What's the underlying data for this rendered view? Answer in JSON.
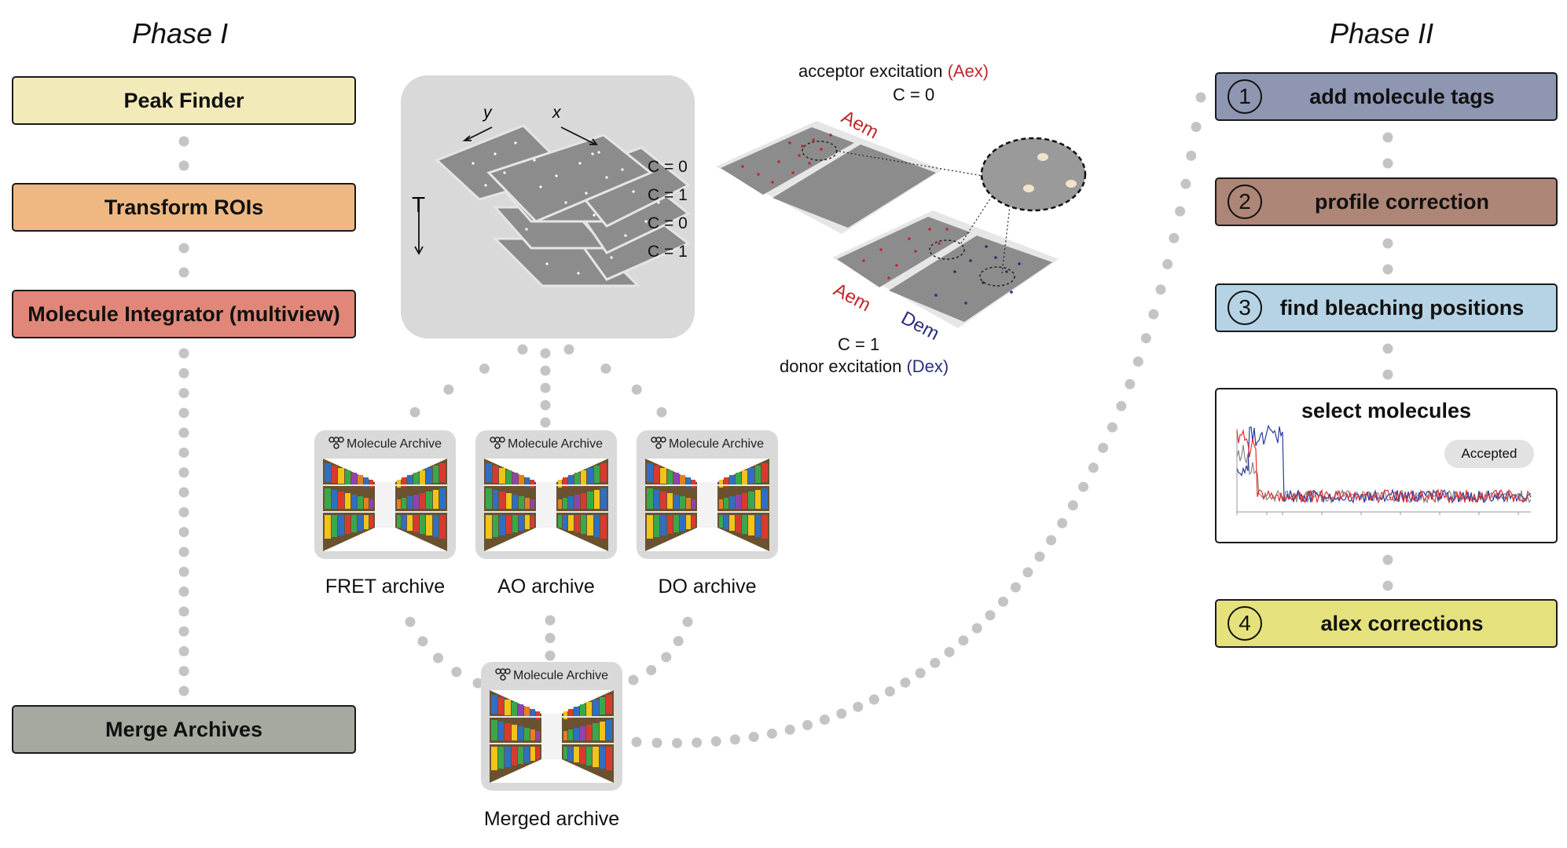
{
  "phase1": {
    "title": "Phase I",
    "steps": [
      {
        "label": "Peak Finder",
        "color": "#f2eab8"
      },
      {
        "label": "Transform ROIs",
        "color": "#efb882"
      },
      {
        "label": "Molecule Integrator (multiview)",
        "color": "#e0877a"
      },
      {
        "label": "Merge Archives",
        "color": "#a4aaa0"
      }
    ]
  },
  "phase2": {
    "title": "Phase II",
    "steps": [
      {
        "number": "1",
        "label": "add molecule tags",
        "color": "#8e96b2"
      },
      {
        "number": "2",
        "label": "profile correction",
        "color": "#ad8677"
      },
      {
        "number": "3",
        "label": "find bleaching positions",
        "color": "#b5d3e5"
      },
      {
        "number": "4",
        "label": "alex corrections",
        "color": "#e5e27d"
      }
    ],
    "select_panel": {
      "title": "select molecules",
      "badge": "Accepted"
    }
  },
  "stack": {
    "axis_y": "y",
    "axis_x": "x",
    "axis_t": "T",
    "c_labels": [
      "C = 0",
      "C = 1",
      "C = 0",
      "C = 1"
    ]
  },
  "views": {
    "top_title": "acceptor excitation",
    "top_title_abbr": "(Aex)",
    "top_c": "C = 0",
    "em_label": "Aem",
    "em_label_2": "Aem",
    "dem_label": "Dem",
    "bottom_c": "C = 1",
    "bottom_title": "donor excitation",
    "bottom_title_abbr": "(Dex)"
  },
  "archives": {
    "header": "Molecule Archive",
    "items": [
      "FRET archive",
      "AO archive",
      "DO archive"
    ],
    "merged": "Merged archive"
  },
  "colors": {
    "acceptor_red": "#c0282d",
    "donor_blue": "#2b2e80",
    "dot_gray": "#c4c4c4",
    "panel_gray": "#d9d9d9",
    "plane_gray": "#8c8c8c"
  }
}
